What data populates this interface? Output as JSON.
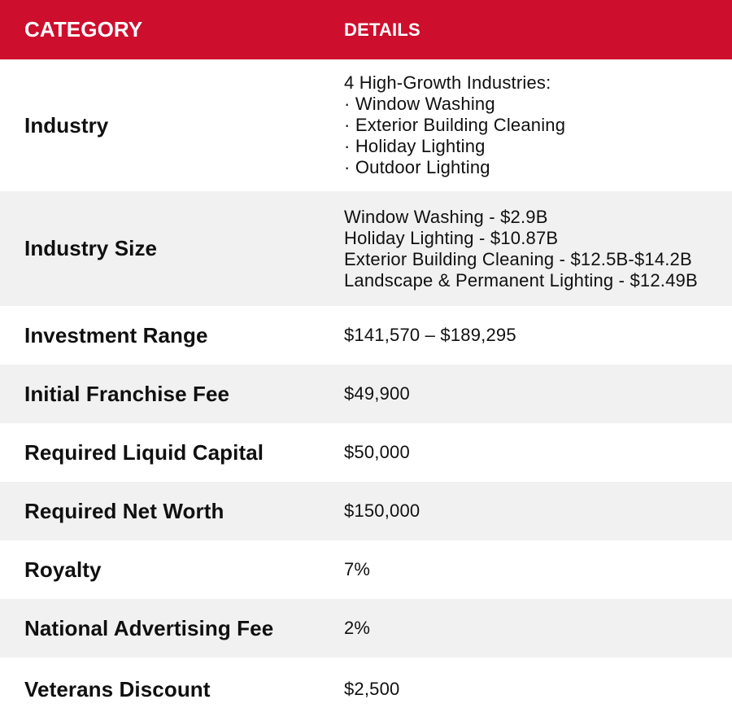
{
  "colors": {
    "header_bg": "#CE0E2D",
    "header_text": "#FFFFFF",
    "row_bg": "#FFFFFF",
    "row_alt_bg": "#F1F1F1",
    "body_text": "#101010"
  },
  "header": {
    "category_label": "CATEGORY",
    "details_label": "DETAILS"
  },
  "table": {
    "rows": [
      {
        "category": "Industry",
        "details": [
          "4 High-Growth Industries:",
          "· Window Washing",
          "· Exterior Building Cleaning",
          "· Holiday Lighting",
          "· Outdoor Lighting"
        ],
        "shaded": false
      },
      {
        "category": "Industry Size",
        "details": [
          "Window Washing - $2.9B",
          "Holiday Lighting - $10.87B",
          "Exterior Building Cleaning - $12.5B-$14.2B",
          "Landscape & Permanent Lighting - $12.49B"
        ],
        "shaded": true
      },
      {
        "category": "Investment Range",
        "details": [
          "$141,570 – $189,295"
        ],
        "shaded": false
      },
      {
        "category": "Initial Franchise Fee",
        "details": [
          "$49,900"
        ],
        "shaded": true
      },
      {
        "category": "Required Liquid Capital",
        "details": [
          "$50,000"
        ],
        "shaded": false
      },
      {
        "category": "Required Net Worth",
        "details": [
          "$150,000"
        ],
        "shaded": true
      },
      {
        "category": "Royalty",
        "details": [
          "7%"
        ],
        "shaded": false
      },
      {
        "category": "National Advertising Fee",
        "details": [
          "2%"
        ],
        "shaded": true
      },
      {
        "category": "Veterans Discount",
        "details": [
          "$2,500"
        ],
        "shaded": false
      }
    ]
  }
}
